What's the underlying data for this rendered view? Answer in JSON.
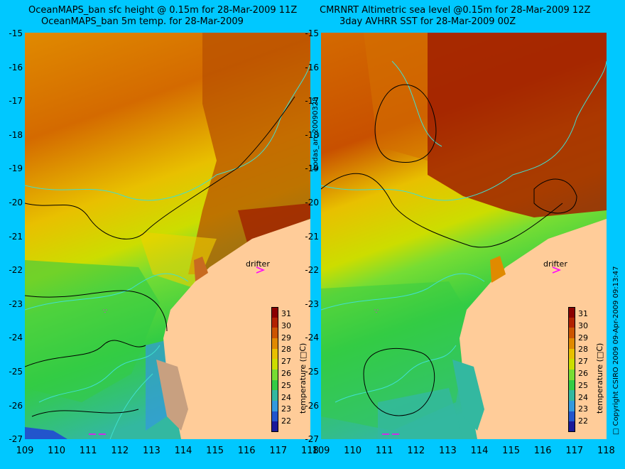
{
  "left_panel": {
    "title_line1": "OceanMAPS_ban sfc height @ 0.15m for 28-Mar-2009 11Z",
    "title_line2": "OceanMAPS_ban 5m temp. for 28-Mar-2009",
    "drifter_label": "drifter"
  },
  "right_panel": {
    "title_line1": "CMRNRT Altimetric sea level  @0.15m  for 28-Mar-2009 12Z",
    "title_line2": "3day AVHRR SST for 28-Mar-2009 00Z",
    "drifter_label": "drifter"
  },
  "y_ticks": [
    "-15",
    "-16",
    "-17",
    "-18",
    "-19",
    "-20",
    "-21",
    "-22",
    "-23",
    "-24",
    "-25",
    "-26",
    "-27"
  ],
  "x_ticks": [
    "109",
    "110",
    "111",
    "112",
    "113",
    "114",
    "115",
    "116",
    "117",
    "118"
  ],
  "colorbar": {
    "labels": [
      "31",
      "30",
      "29",
      "28",
      "27",
      "26",
      "25",
      "24",
      "23",
      "22"
    ],
    "title": "temperature (□C)",
    "colors": [
      "#8b0000",
      "#b22200",
      "#cc5500",
      "#e08a00",
      "#e8c000",
      "#ccdd00",
      "#77dd33",
      "#33cc44",
      "#33b8a0",
      "#3399dd",
      "#2255cc",
      "#1a1a99"
    ]
  },
  "side_text": {
    "run_id": "bodas_an_20090328",
    "copyright": "□ Copyright CSIRO 2009    09-Apr-2009 09:13:47"
  },
  "colors": {
    "background": "#00c8ff",
    "land": "#ffcc99",
    "coastline_contour": "#40e0d0",
    "drifter": "#ff00ff"
  }
}
